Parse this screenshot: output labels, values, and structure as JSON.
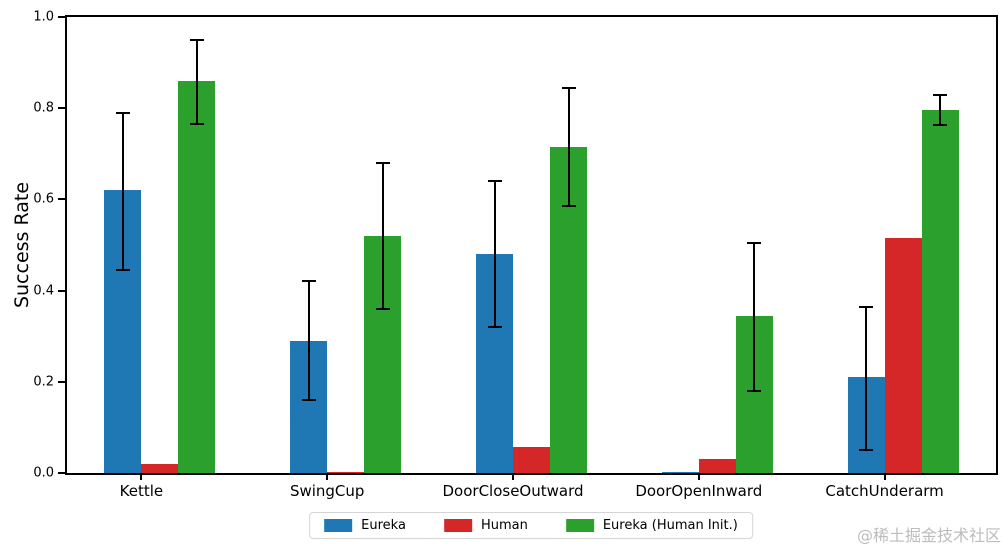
{
  "watermark": "@稀土掘金技术社区",
  "chart_data": {
    "type": "bar",
    "title": "",
    "xlabel": "",
    "ylabel": "Success Rate",
    "ylim": [
      0.0,
      1.0
    ],
    "yticks": [
      0.0,
      0.2,
      0.4,
      0.6,
      0.8,
      1.0
    ],
    "grid": false,
    "legend_position": "bottom",
    "categories": [
      "Kettle",
      "SwingCup",
      "DoorCloseOutward",
      "DoorOpenInward",
      "CatchUnderarm"
    ],
    "series": [
      {
        "name": "Eureka",
        "color": "#1f77b4",
        "values": [
          0.62,
          0.29,
          0.48,
          0.003,
          0.21
        ],
        "err_low": [
          0.445,
          0.16,
          0.32,
          null,
          0.05
        ],
        "err_high": [
          0.79,
          0.42,
          0.64,
          null,
          0.365
        ]
      },
      {
        "name": "Human",
        "color": "#d62728",
        "values": [
          0.02,
          0.003,
          0.058,
          0.03,
          0.515
        ],
        "err_low": [
          null,
          null,
          null,
          null,
          null
        ],
        "err_high": [
          null,
          null,
          null,
          null,
          null
        ]
      },
      {
        "name": "Eureka (Human Init.)",
        "color": "#2ca02c",
        "values": [
          0.86,
          0.52,
          0.715,
          0.345,
          0.795
        ],
        "err_low": [
          0.765,
          0.36,
          0.585,
          0.18,
          0.763
        ],
        "err_high": [
          0.95,
          0.68,
          0.845,
          0.505,
          0.828
        ]
      }
    ]
  }
}
